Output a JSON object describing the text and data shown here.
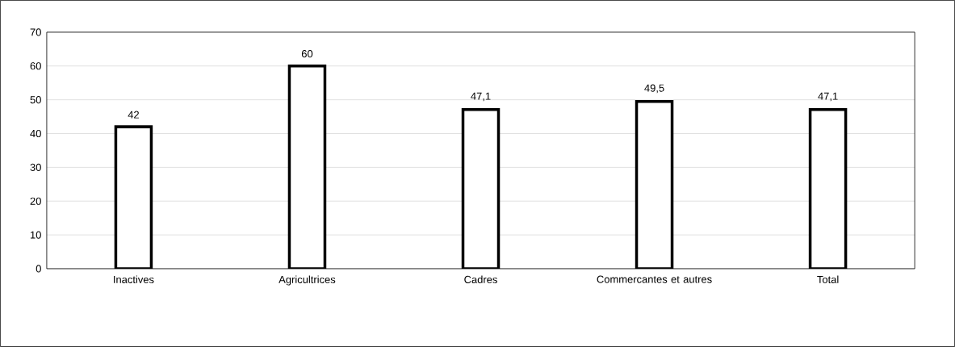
{
  "chart_data": {
    "type": "bar",
    "categories": [
      "Inactives",
      "Agricultrices",
      "Cadres",
      "Commercantes et autres",
      "Total"
    ],
    "values": [
      42,
      60,
      47.1,
      49.5,
      47.1
    ],
    "value_labels": [
      "42",
      "60",
      "47,1",
      "49,5",
      "47,1"
    ],
    "color": "#ffffff",
    "ylim": [
      0,
      70
    ],
    "yticks": [
      0,
      10,
      20,
      30,
      40,
      50,
      60,
      70
    ],
    "grid": "y"
  }
}
